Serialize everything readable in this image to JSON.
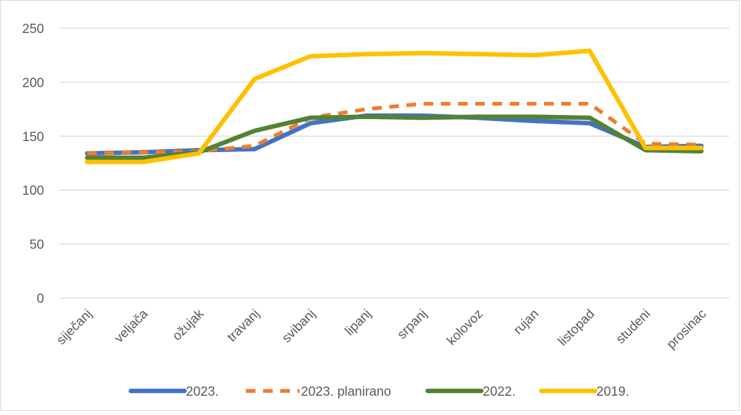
{
  "chart_data": {
    "type": "line",
    "title": "",
    "xlabel": "",
    "ylabel": "",
    "ylim": [
      0,
      250
    ],
    "yticks": [
      0,
      50,
      100,
      150,
      200,
      250
    ],
    "grid": true,
    "legend_position": "bottom",
    "categories": [
      "siječanj",
      "veljača",
      "ožujak",
      "travanj",
      "svibanj",
      "lipanj",
      "srpanj",
      "kolovoz",
      "rujan",
      "listopad",
      "studeni",
      "prosinac"
    ],
    "series": [
      {
        "name": "2023.",
        "color": "#4472c4",
        "dashed": false,
        "values": [
          134,
          135,
          137,
          138,
          162,
          169,
          169,
          167,
          164,
          162,
          140,
          141
        ]
      },
      {
        "name": "2023. planirano",
        "color": "#ed7d31",
        "dashed": true,
        "values": [
          134,
          135,
          136,
          141,
          167,
          175,
          180,
          180,
          180,
          180,
          143,
          142
        ]
      },
      {
        "name": "2022.",
        "color": "#548235",
        "dashed": false,
        "values": [
          130,
          130,
          135,
          155,
          167,
          168,
          167,
          168,
          168,
          167,
          137,
          136
        ]
      },
      {
        "name": "2019.",
        "color": "#ffc000",
        "dashed": false,
        "values": [
          126,
          126,
          134,
          203,
          224,
          226,
          227,
          226,
          225,
          229,
          139,
          139
        ]
      }
    ]
  }
}
